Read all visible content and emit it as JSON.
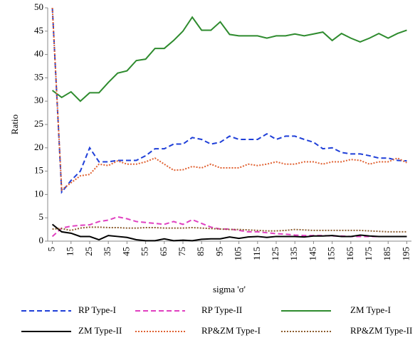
{
  "chart_data": {
    "type": "line",
    "y_label": "Ratio",
    "x_label": "sigma 'σ'",
    "x": [
      5,
      10,
      15,
      20,
      25,
      30,
      35,
      40,
      45,
      50,
      55,
      60,
      65,
      70,
      75,
      80,
      85,
      90,
      95,
      100,
      105,
      110,
      115,
      120,
      125,
      130,
      135,
      140,
      145,
      150,
      155,
      160,
      165,
      170,
      175,
      180,
      185,
      190,
      195
    ],
    "xlim": [
      2.5,
      197.5
    ],
    "xticks": [
      5,
      15,
      25,
      35,
      45,
      55,
      65,
      75,
      85,
      95,
      105,
      115,
      125,
      135,
      145,
      155,
      165,
      175,
      185,
      195
    ],
    "ylim": [
      0,
      50
    ],
    "yticks": [
      0,
      5,
      10,
      15,
      20,
      25,
      30,
      35,
      40,
      45,
      50
    ],
    "grid": false,
    "series": [
      {
        "name": "RP Type-I",
        "color": "#1f3fd8",
        "style": "dashed",
        "values": [
          50,
          10.5,
          13,
          15,
          20,
          17,
          17,
          17.3,
          17.3,
          17.3,
          18.3,
          19.8,
          19.8,
          20.8,
          20.8,
          22.2,
          21.8,
          20.8,
          21.2,
          22.5,
          21.8,
          21.8,
          21.8,
          23,
          21.8,
          22.5,
          22.5,
          21.8,
          21.2,
          19.8,
          20,
          19,
          18.7,
          18.7,
          18.3,
          17.8,
          17.8,
          17.3,
          17.2
        ]
      },
      {
        "name": "RP Type-II",
        "color": "#e040c0",
        "style": "dashed",
        "values": [
          1,
          2.8,
          3.2,
          3.4,
          3.5,
          4.2,
          4.5,
          5.2,
          4.8,
          4.2,
          4,
          3.8,
          3.6,
          4.2,
          3.6,
          4.6,
          3.8,
          3,
          2.6,
          2.6,
          2.3,
          2,
          2,
          1.8,
          1.6,
          1.5,
          1.3,
          1.2,
          1.2,
          1.2,
          1.1,
          1.1,
          1,
          1,
          1,
          1,
          1,
          1,
          1
        ]
      },
      {
        "name": "ZM Type-I",
        "color": "#2e8b2e",
        "style": "solid",
        "values": [
          32.3,
          30.8,
          32,
          30,
          31.8,
          31.8,
          34,
          36,
          36.5,
          38.7,
          39,
          41.3,
          41.3,
          43,
          45,
          48,
          45.2,
          45.2,
          47,
          44.3,
          44,
          44,
          44,
          43.5,
          44,
          44,
          44.4,
          44,
          44.4,
          44.8,
          43,
          44.5,
          43.5,
          42.7,
          43.5,
          44.5,
          43.5,
          44.5,
          45.2
        ]
      },
      {
        "name": "ZM Type-II",
        "color": "#000000",
        "style": "solid",
        "values": [
          3.6,
          2,
          1.7,
          1,
          1,
          0.3,
          1.2,
          1,
          0.8,
          0.3,
          0.1,
          0.1,
          0.5,
          0.1,
          0.2,
          0.1,
          0.4,
          0.5,
          0.5,
          0.9,
          0.6,
          0.9,
          1,
          0.8,
          1,
          1,
          1,
          0.9,
          1.1,
          1.1,
          1.2,
          1,
          1,
          1.3,
          1.1,
          1,
          1,
          1,
          1
        ]
      },
      {
        "name": "RP&ZM Type-I",
        "color": "#e06030",
        "style": "dotted",
        "values": [
          50,
          11,
          12.5,
          14,
          14.3,
          16.5,
          16.2,
          17.2,
          16.5,
          16.5,
          17,
          17.8,
          16.5,
          15.2,
          15.3,
          16,
          15.7,
          16.5,
          15.7,
          15.7,
          15.7,
          16.5,
          16.2,
          16.5,
          17,
          16.5,
          16.5,
          17,
          17,
          16.5,
          17,
          17,
          17.5,
          17.3,
          16.5,
          17,
          17,
          17.8,
          16.8
        ]
      },
      {
        "name": "RP&ZM Type-II",
        "color": "#8b5a2b",
        "style": "dotted",
        "values": [
          2.6,
          2.7,
          2.3,
          2.8,
          3,
          3,
          2.9,
          2.9,
          2.8,
          2.8,
          2.9,
          2.9,
          2.8,
          2.8,
          2.8,
          2.9,
          2.8,
          2.7,
          2.6,
          2.5,
          2.5,
          2.4,
          2.3,
          2.2,
          2.2,
          2.3,
          2.5,
          2.4,
          2.3,
          2.3,
          2.3,
          2.3,
          2.3,
          2.3,
          2.2,
          2.1,
          2,
          2,
          2
        ]
      }
    ]
  }
}
